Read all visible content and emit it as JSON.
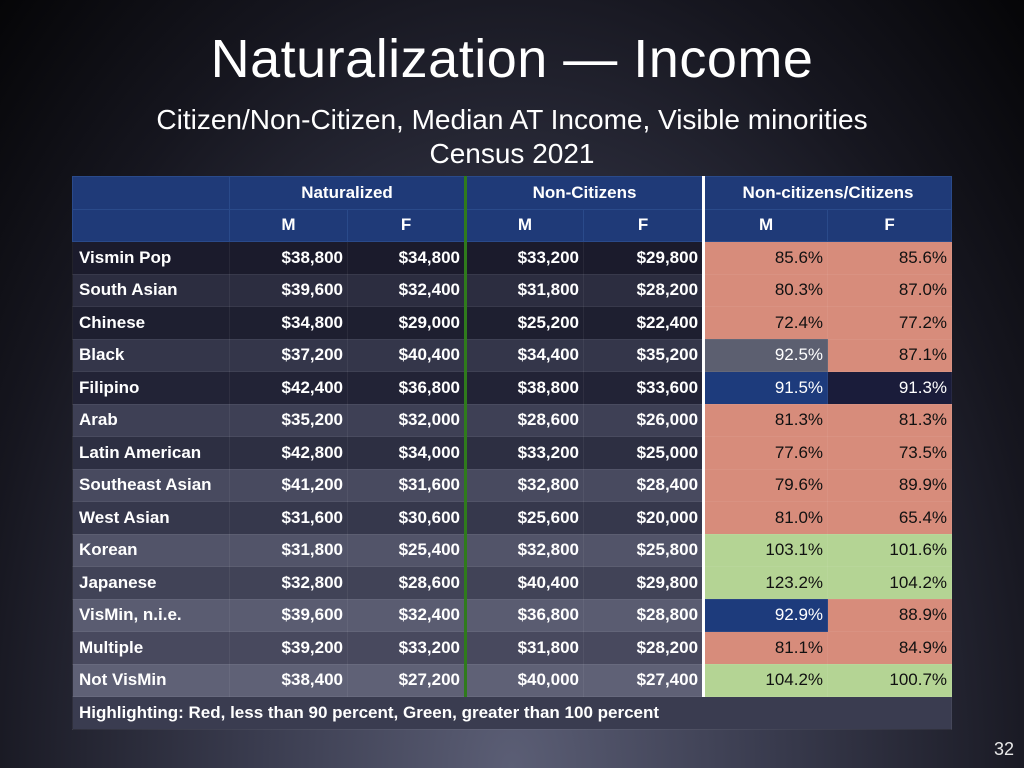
{
  "slide": {
    "title": "Naturalization — Income",
    "subtitle_line1": "Citizen/Non-Citizen, Median AT Income, Visible minorities",
    "subtitle_line2": "Census 2021",
    "page_number": "32"
  },
  "table": {
    "group_headers": [
      "Naturalized",
      "Non-Citizens",
      "Non-citizens/Citizens"
    ],
    "sub_headers": [
      "M",
      "F",
      "M",
      "F",
      "M",
      "F"
    ],
    "rows": [
      {
        "label": "Vismin Pop",
        "values": [
          "$38,800",
          "$34,800",
          "$33,200",
          "$29,800",
          "85.6%",
          "85.6%"
        ],
        "bg": "#1b1b2c",
        "hl": [
          "pink",
          "pink"
        ]
      },
      {
        "label": "South Asian",
        "values": [
          "$39,600",
          "$32,400",
          "$31,800",
          "$28,200",
          "80.3%",
          "87.0%"
        ],
        "bg": "#2c2d40",
        "hl": [
          "pink",
          "pink"
        ]
      },
      {
        "label": "Chinese",
        "values": [
          "$34,800",
          "$29,000",
          "$25,200",
          "$22,400",
          "72.4%",
          "77.2%"
        ],
        "bg": "#1e1f30",
        "hl": [
          "pink",
          "pink"
        ]
      },
      {
        "label": "Black",
        "values": [
          "$37,200",
          "$40,400",
          "$34,400",
          "$35,200",
          "92.5%",
          "87.1%"
        ],
        "bg": "#34364a",
        "hl": [
          "grey",
          "pink"
        ]
      },
      {
        "label": "Filipino",
        "values": [
          "$42,400",
          "$36,800",
          "$38,800",
          "$33,600",
          "91.5%",
          "91.3%"
        ],
        "bg": "#222336",
        "hl": [
          "blueh",
          "darkh"
        ]
      },
      {
        "label": "Arab",
        "values": [
          "$35,200",
          "$32,000",
          "$28,600",
          "$26,000",
          "81.3%",
          "81.3%"
        ],
        "bg": "#3e4055",
        "hl": [
          "pink",
          "pink"
        ]
      },
      {
        "label": "Latin American",
        "values": [
          "$42,800",
          "$34,000",
          "$33,200",
          "$25,000",
          "77.6%",
          "73.5%"
        ],
        "bg": "#2d2f42",
        "hl": [
          "pink",
          "pink"
        ]
      },
      {
        "label": "Southeast Asian",
        "values": [
          "$41,200",
          "$31,600",
          "$32,800",
          "$28,400",
          "79.6%",
          "89.9%"
        ],
        "bg": "#484a5f",
        "hl": [
          "pink",
          "pink"
        ]
      },
      {
        "label": "West Asian",
        "values": [
          "$31,600",
          "$30,600",
          "$25,600",
          "$20,000",
          "81.0%",
          "65.4%"
        ],
        "bg": "#36384c",
        "hl": [
          "pink",
          "pink"
        ]
      },
      {
        "label": "Korean",
        "values": [
          "$31,800",
          "$25,400",
          "$32,800",
          "$25,800",
          "103.1%",
          "101.6%"
        ],
        "bg": "#525469",
        "hl": [
          "green",
          "green"
        ]
      },
      {
        "label": "Japanese",
        "values": [
          "$32,800",
          "$28,600",
          "$40,400",
          "$29,800",
          "123.2%",
          "104.2%"
        ],
        "bg": "#414357",
        "hl": [
          "green",
          "green"
        ]
      },
      {
        "label": "VisMin, n.i.e.",
        "values": [
          "$39,600",
          "$32,400",
          "$36,800",
          "$28,800",
          "92.9%",
          "88.9%"
        ],
        "bg": "#5a5c71",
        "hl": [
          "blueh",
          "pink"
        ]
      },
      {
        "label": "Multiple",
        "values": [
          "$39,200",
          "$33,200",
          "$31,800",
          "$28,200",
          "81.1%",
          "84.9%"
        ],
        "bg": "#48495e",
        "hl": [
          "pink",
          "pink"
        ]
      },
      {
        "label": "Not VisMin",
        "values": [
          "$38,400",
          "$27,200",
          "$40,000",
          "$27,400",
          "104.2%",
          "100.7%"
        ],
        "bg": "#5f6176",
        "hl": [
          "green",
          "green"
        ]
      }
    ],
    "footnote": "Highlighting: Red, less than 90 percent, Green, greater than 100 percent"
  }
}
